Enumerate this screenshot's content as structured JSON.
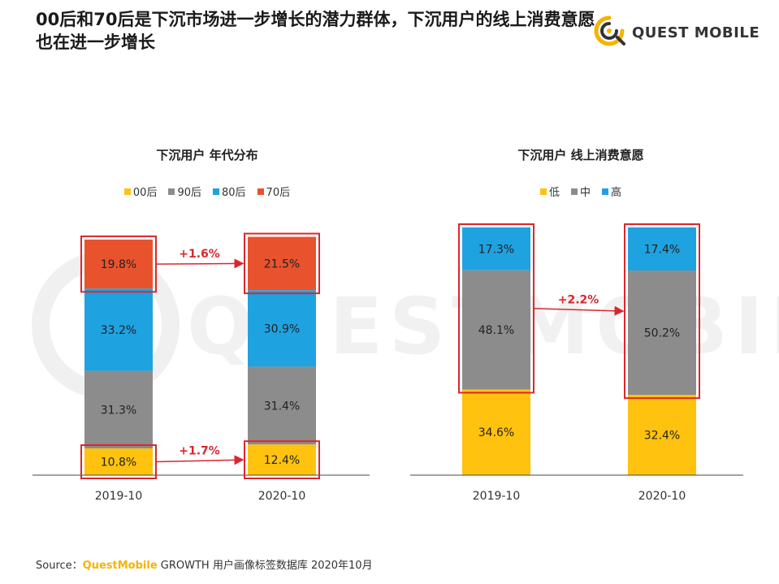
{
  "page": {
    "headline": "00后和70后是下沉市场进一步增长的潜力群体，下沉用户的线上消费意愿也在进一步增长",
    "brand_name": "QUEST MOBILE",
    "brand_icon": "questmobile-logo-icon",
    "watermark_text": "QUESTMOBILE"
  },
  "source": {
    "label": "Source：",
    "brand": "QuestMobile",
    "text": " GROWTH 用户画像标签数据库 2020年10月"
  },
  "chart_data": [
    {
      "type": "bar",
      "stacked": true,
      "title": "下沉用户 年代分布",
      "categories": [
        "2019-10",
        "2020-10"
      ],
      "ylim": [
        0,
        100
      ],
      "grid": false,
      "legend_position": "top",
      "series": [
        {
          "name": "00后",
          "color": "#FFC20E",
          "values": [
            10.8,
            12.4
          ],
          "labels": [
            "10.8%",
            "12.4%"
          ]
        },
        {
          "name": "90后",
          "color": "#8C8C8C",
          "values": [
            31.3,
            31.4
          ],
          "labels": [
            "31.3%",
            "31.4%"
          ]
        },
        {
          "name": "80后",
          "color": "#1FA2E0",
          "values": [
            33.2,
            30.9
          ],
          "labels": [
            "33.2%",
            "30.9%"
          ]
        },
        {
          "name": "70后",
          "color": "#E8532E",
          "values": [
            19.8,
            21.5
          ],
          "labels": [
            "19.8%",
            "21.5%"
          ]
        }
      ],
      "highlight_series": [
        "70后",
        "00后"
      ],
      "annotations": [
        {
          "series": "70后",
          "text": "+1.6%"
        },
        {
          "series": "00后",
          "text": "+1.7%"
        }
      ]
    },
    {
      "type": "bar",
      "stacked": true,
      "title": "下沉用户 线上消费意愿",
      "categories": [
        "2019-10",
        "2020-10"
      ],
      "ylim": [
        0,
        100
      ],
      "grid": false,
      "legend_position": "top",
      "series": [
        {
          "name": "低",
          "color": "#FFC20E",
          "values": [
            34.6,
            32.4
          ],
          "labels": [
            "34.6%",
            "32.4%"
          ]
        },
        {
          "name": "中",
          "color": "#8C8C8C",
          "values": [
            48.1,
            50.2
          ],
          "labels": [
            "48.1%",
            "50.2%"
          ]
        },
        {
          "name": "高",
          "color": "#1FA2E0",
          "values": [
            17.3,
            17.4
          ],
          "labels": [
            "17.3%",
            "17.4%"
          ]
        }
      ],
      "highlight_series": [
        "中+高"
      ],
      "annotations": [
        {
          "series": "中+高",
          "text": "+2.2%"
        }
      ]
    }
  ],
  "colors": {
    "highlight_box": "#D9272E",
    "annotation": "#D9272E",
    "brand_accent": "#F5B400"
  }
}
